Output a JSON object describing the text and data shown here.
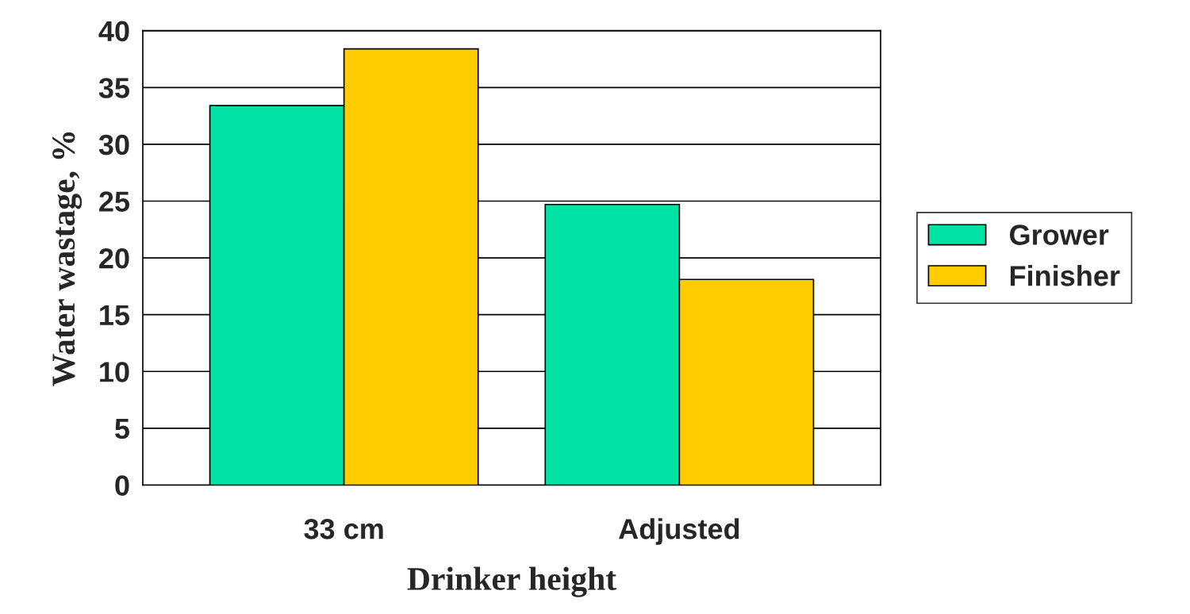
{
  "chart_data": {
    "type": "bar",
    "xlabel": "Drinker height",
    "ylabel": "Water wastage, %",
    "categories": [
      "33 cm",
      "Adjusted"
    ],
    "series": [
      {
        "name": "Grower",
        "color": "#00e3a5",
        "values": [
          33.4,
          24.7
        ]
      },
      {
        "name": "Finisher",
        "color": "#ffcc00",
        "values": [
          38.4,
          18.1
        ]
      }
    ],
    "ylim": [
      0,
      40
    ],
    "yticks": [
      0,
      5,
      10,
      15,
      20,
      25,
      30,
      35,
      40
    ],
    "grid": "y",
    "legend": "right"
  }
}
